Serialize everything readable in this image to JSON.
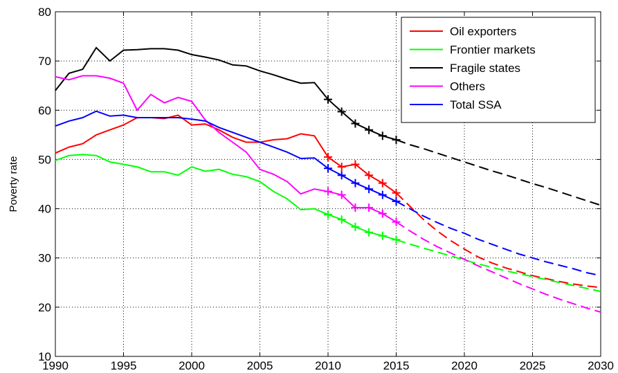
{
  "chart_data": {
    "type": "line",
    "ylabel": "Poverty rate",
    "x": [
      1990,
      1991,
      1992,
      1993,
      1994,
      1995,
      1996,
      1997,
      1998,
      1999,
      2000,
      2001,
      2002,
      2003,
      2004,
      2005,
      2006,
      2007,
      2008,
      2009,
      2010,
      2011,
      2012,
      2013,
      2014,
      2015,
      2016,
      2017,
      2018,
      2019,
      2020,
      2021,
      2022,
      2023,
      2024,
      2025,
      2026,
      2027,
      2028,
      2029,
      2030
    ],
    "series": [
      {
        "name": "Oil exporters",
        "color": "#ff0000",
        "values": [
          51.3,
          52.5,
          53.2,
          55,
          56,
          57,
          58.5,
          58.5,
          58.3,
          59,
          57,
          57.2,
          56,
          54.5,
          53.5,
          53.5,
          54,
          54.2,
          55.2,
          54.8,
          50.5,
          48.5,
          49,
          46.8,
          45.2,
          43.2,
          40.5,
          37.8,
          35.5,
          33.5,
          31.8,
          30.2,
          29,
          28,
          27.2,
          26.4,
          25.8,
          25.2,
          24.7,
          24.3,
          24
        ]
      },
      {
        "name": "Frontier markets",
        "color": "#00ff00",
        "values": [
          49.8,
          50.8,
          51,
          50.8,
          49.5,
          49,
          48.5,
          47.5,
          47.5,
          46.8,
          48.5,
          47.6,
          48,
          47,
          46.5,
          45.5,
          43.5,
          42,
          39.8,
          40,
          38.8,
          37.8,
          36.3,
          35.2,
          34.5,
          33.7,
          32.8,
          32,
          31.2,
          30.4,
          29.6,
          28.8,
          28.1,
          27.4,
          26.8,
          26.2,
          25.6,
          25,
          24.4,
          23.8,
          23.2
        ]
      },
      {
        "name": "Fragile states",
        "color": "#000000",
        "values": [
          64,
          67.5,
          68.3,
          72.7,
          70,
          72.2,
          72.3,
          72.5,
          72.5,
          72.2,
          71.3,
          70.8,
          70.2,
          69.2,
          69,
          68,
          67.2,
          66.3,
          65.5,
          65.6,
          62.2,
          59.7,
          57.3,
          56,
          54.8,
          54,
          53,
          52.2,
          51.3,
          50.4,
          49.5,
          48.6,
          47.7,
          46.9,
          46,
          45.1,
          44.3,
          43.4,
          42.5,
          41.6,
          40.7
        ]
      },
      {
        "name": "Others",
        "color": "#ff00ff",
        "values": [
          66.8,
          66.2,
          67,
          67,
          66.5,
          65.5,
          60,
          63.2,
          61.5,
          62.6,
          61.8,
          58,
          55.5,
          53.5,
          51.5,
          48,
          47,
          45.5,
          43,
          44,
          43.5,
          42.8,
          40.2,
          40.2,
          39,
          37.3,
          35.5,
          33.8,
          32.3,
          31,
          29.7,
          28.4,
          27.2,
          26,
          24.8,
          23.7,
          22.6,
          21.6,
          20.7,
          19.8,
          19
        ]
      },
      {
        "name": "Total SSA",
        "color": "#0000ff",
        "values": [
          56.8,
          57.8,
          58.5,
          59.8,
          58.8,
          59,
          58.5,
          58.5,
          58.5,
          58.5,
          58.2,
          57.8,
          56.5,
          55.5,
          54.5,
          53.5,
          52.5,
          51.5,
          50.2,
          50.3,
          48.2,
          46.8,
          45.2,
          44,
          42.8,
          41.5,
          40,
          38.5,
          37.2,
          36,
          35,
          33.8,
          32.8,
          31.8,
          30.8,
          30,
          29.2,
          28.5,
          27.8,
          27,
          26.4
        ]
      }
    ],
    "xlim": [
      1990,
      2030
    ],
    "xticks": [
      1990,
      1995,
      2000,
      2005,
      2010,
      2015,
      2020,
      2025,
      2030
    ],
    "ylim": [
      10,
      80
    ],
    "yticks": [
      10,
      20,
      30,
      40,
      50,
      60,
      70,
      80
    ],
    "grid": true,
    "legend": "upper right",
    "marker_range": [
      2010,
      2015
    ],
    "dash_from": 2015
  }
}
